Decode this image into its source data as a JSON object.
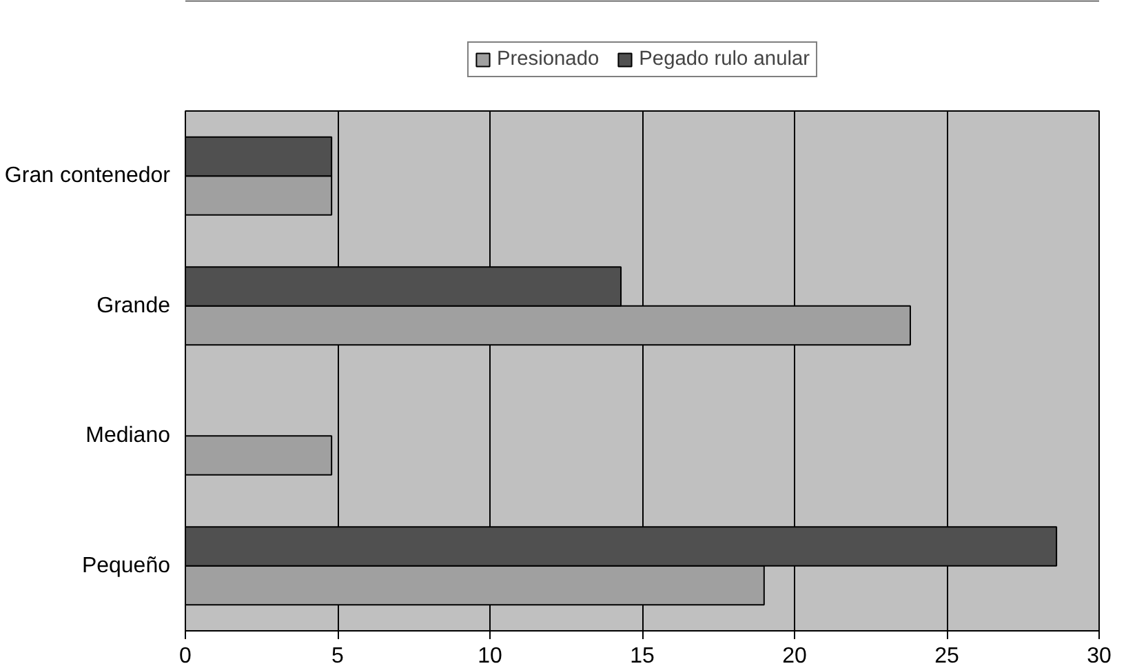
{
  "chart_data": {
    "type": "bar",
    "orientation": "horizontal",
    "categories": [
      "Gran contenedor",
      "Grande",
      "Mediano",
      "Pequeño"
    ],
    "series": [
      {
        "name": "Presionado",
        "color": "#a0a0a0",
        "values": [
          4.8,
          23.8,
          4.8,
          19.0
        ]
      },
      {
        "name": "Pegado rulo anular",
        "color": "#505050",
        "values": [
          4.8,
          14.3,
          null,
          28.6
        ]
      }
    ],
    "xlim": [
      0,
      30
    ],
    "xticks": [
      0,
      5,
      10,
      15,
      20,
      25,
      30
    ],
    "grid": "x",
    "legend": "top"
  }
}
